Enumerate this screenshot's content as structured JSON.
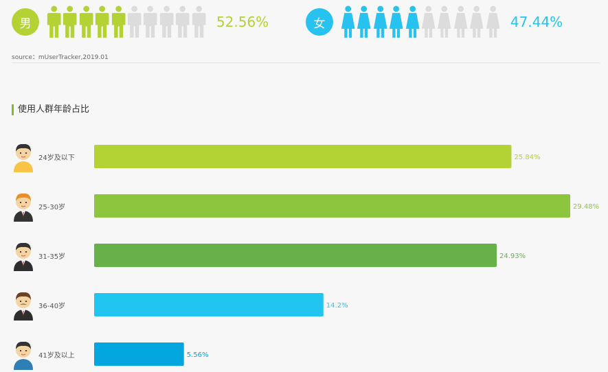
{
  "gender": {
    "male": {
      "badge": "男",
      "percent_label": "52.56%",
      "value": 52.56,
      "icons_total": 10,
      "icons_filled": 5,
      "color": "#b3d234"
    },
    "female": {
      "badge": "女",
      "percent_label": "47.44%",
      "value": 47.44,
      "icons_total": 10,
      "icons_filled": 5,
      "color": "#28c2f0"
    },
    "empty_color": "#dcdcdc"
  },
  "source": "source：mUserTracker,2019.01",
  "section_title": "使用人群年龄占比",
  "accent_color": "#7dbd2e",
  "chart_data": {
    "type": "bar",
    "orientation": "horizontal",
    "title": "使用人群年龄占比",
    "xlabel": "",
    "ylabel": "",
    "categories": [
      "24岁及以下",
      "25-30岁",
      "31-35岁",
      "36-40岁",
      "41岁及以上"
    ],
    "values": [
      25.84,
      29.48,
      24.93,
      14.2,
      5.56
    ],
    "value_labels": [
      "25.84%",
      "29.48%",
      "24.93%",
      "14.2%",
      "5.56%"
    ],
    "colors": [
      "#b3d234",
      "#8dc53e",
      "#68b04a",
      "#21c6f0",
      "#03a6df"
    ],
    "xlim": [
      0,
      29.48
    ],
    "grid": false,
    "legend": "none"
  },
  "avatars": [
    {
      "name": "young-man-avatar-icon",
      "shirt": "#f9c346",
      "hair": "#333333"
    },
    {
      "name": "office-man-avatar-icon",
      "shirt": "#333333",
      "hair": "#e88f2a"
    },
    {
      "name": "suit-man-avatar-icon",
      "shirt": "#2e2e2e",
      "hair": "#333333"
    },
    {
      "name": "mustache-man-avatar-icon",
      "shirt": "#2e2e2e",
      "hair": "#6b4226"
    },
    {
      "name": "senior-man-avatar-icon",
      "shirt": "#2f7fb5",
      "hair": "#333333"
    }
  ]
}
